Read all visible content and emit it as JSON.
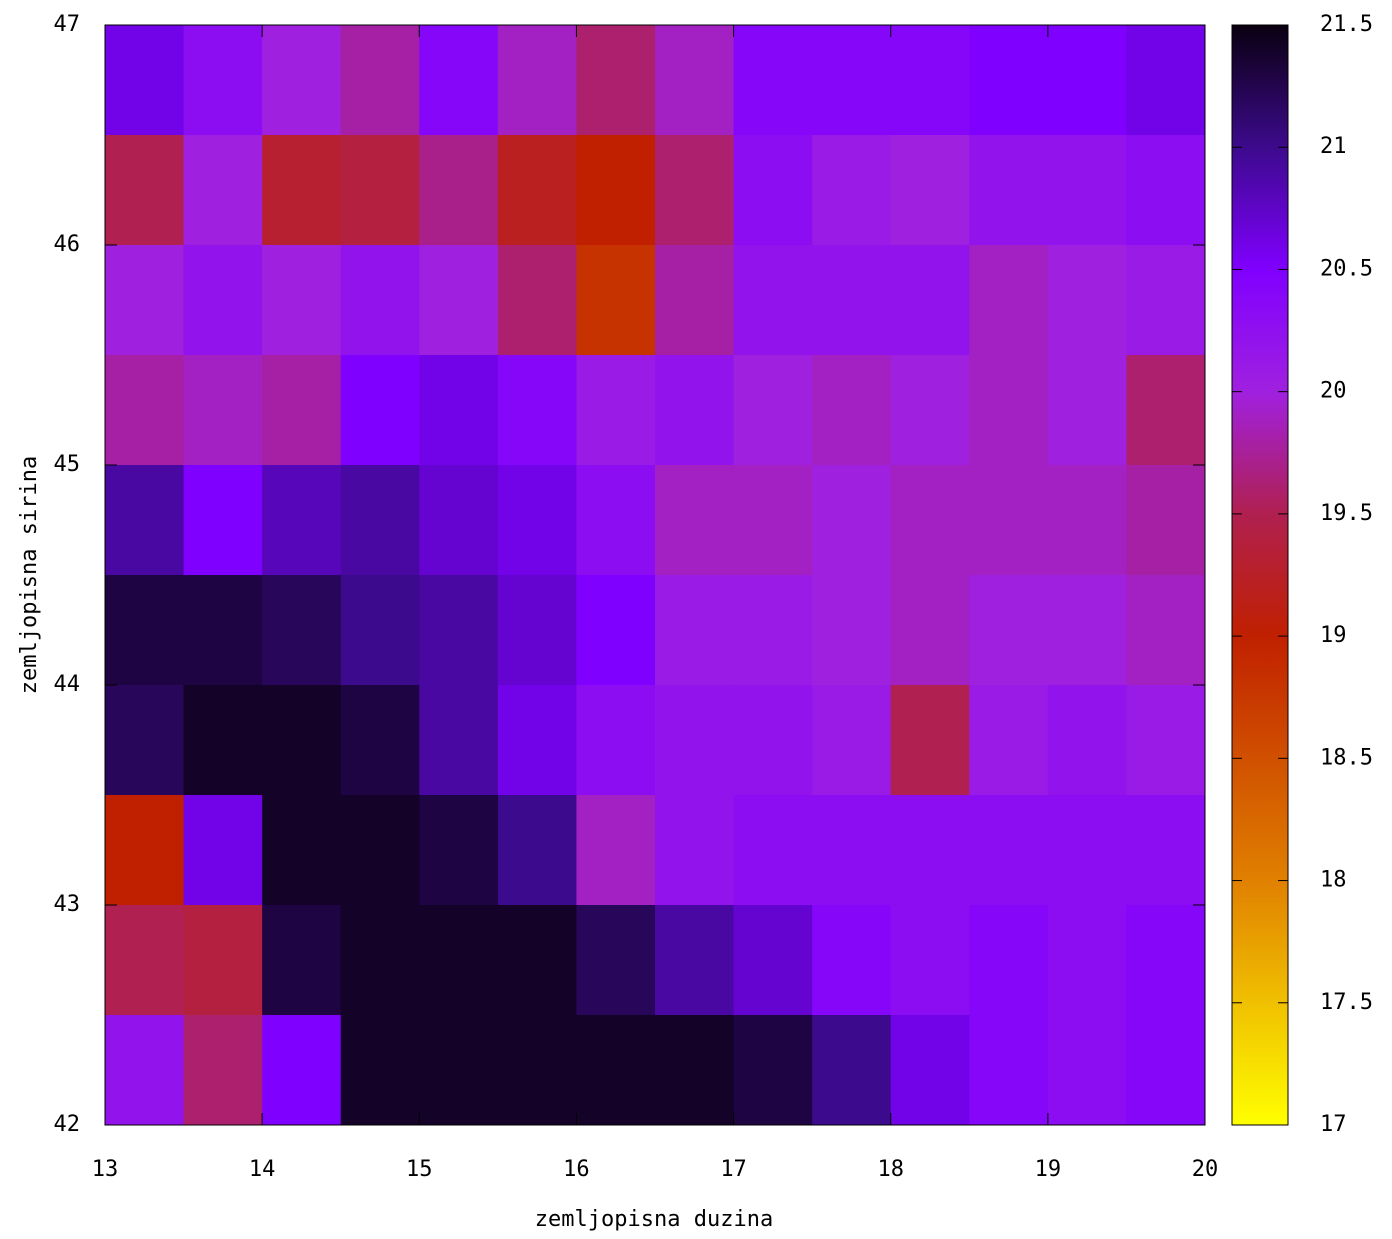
{
  "chart_data": {
    "type": "heatmap",
    "xlabel": "zemljopisna duzina",
    "ylabel": "zemljopisna sirina",
    "xlim": [
      13,
      20
    ],
    "ylim": [
      42,
      47
    ],
    "xticks": [
      13,
      14,
      15,
      16,
      17,
      18,
      19,
      20
    ],
    "yticks": [
      42,
      43,
      44,
      45,
      46,
      47
    ],
    "x": [
      13.25,
      13.75,
      14.25,
      14.75,
      15.25,
      15.75,
      16.25,
      16.75,
      17.25,
      17.75,
      18.25,
      18.75,
      19.25,
      19.75
    ],
    "y": [
      46.75,
      46.25,
      45.75,
      45.25,
      44.75,
      44.25,
      43.75,
      43.25,
      42.75,
      42.25
    ],
    "z": [
      [
        20.6,
        20.3,
        20.0,
        19.8,
        20.4,
        19.9,
        19.6,
        19.9,
        20.4,
        20.4,
        20.4,
        20.5,
        20.5,
        20.6
      ],
      [
        19.5,
        20.0,
        19.3,
        19.4,
        19.7,
        19.2,
        19.0,
        19.6,
        20.3,
        20.1,
        20.0,
        20.2,
        20.2,
        20.3
      ],
      [
        20.0,
        20.2,
        20.0,
        20.2,
        20.0,
        19.6,
        18.8,
        19.8,
        20.2,
        20.2,
        20.2,
        19.9,
        20.0,
        20.1
      ],
      [
        19.8,
        19.9,
        19.8,
        20.5,
        20.6,
        20.4,
        20.1,
        20.2,
        20.0,
        19.9,
        20.0,
        19.9,
        20.0,
        19.6
      ],
      [
        20.9,
        20.5,
        20.8,
        20.9,
        20.7,
        20.6,
        20.3,
        19.9,
        19.9,
        20.0,
        19.9,
        19.9,
        19.9,
        19.8
      ],
      [
        21.3,
        21.3,
        21.2,
        21.0,
        20.9,
        20.7,
        20.5,
        20.1,
        20.1,
        20.0,
        19.9,
        20.0,
        20.0,
        19.9
      ],
      [
        21.2,
        21.4,
        21.4,
        21.3,
        20.9,
        20.6,
        20.3,
        20.2,
        20.2,
        20.1,
        19.5,
        20.1,
        20.2,
        20.1
      ],
      [
        19.0,
        20.6,
        21.4,
        21.4,
        21.3,
        21.0,
        19.9,
        20.2,
        20.3,
        20.3,
        20.3,
        20.3,
        20.3,
        20.3
      ],
      [
        19.5,
        19.4,
        21.3,
        21.4,
        21.4,
        21.4,
        21.2,
        20.9,
        20.7,
        20.4,
        20.3,
        20.4,
        20.3,
        20.4
      ],
      [
        20.2,
        19.6,
        20.5,
        21.4,
        21.4,
        21.4,
        21.4,
        21.4,
        21.3,
        21.0,
        20.6,
        20.4,
        20.3,
        20.4
      ]
    ],
    "cblim": [
      17,
      21.5
    ],
    "cbticks": [
      17,
      17.5,
      18,
      18.5,
      19,
      19.5,
      20,
      20.5,
      21,
      21.5
    ],
    "palette": [
      {
        "value": 17,
        "color": "#ffff00"
      },
      {
        "value": 17.5,
        "color": "#f0c000"
      },
      {
        "value": 18,
        "color": "#e08000"
      },
      {
        "value": 18.5,
        "color": "#d05000"
      },
      {
        "value": 19,
        "color": "#c02000"
      },
      {
        "value": 19.5,
        "color": "#b02050"
      },
      {
        "value": 20,
        "color": "#a020e0"
      },
      {
        "value": 20.5,
        "color": "#8000ff"
      },
      {
        "value": 21,
        "color": "#3c0a8c"
      },
      {
        "value": 21.5,
        "color": "#0a0010"
      }
    ]
  }
}
